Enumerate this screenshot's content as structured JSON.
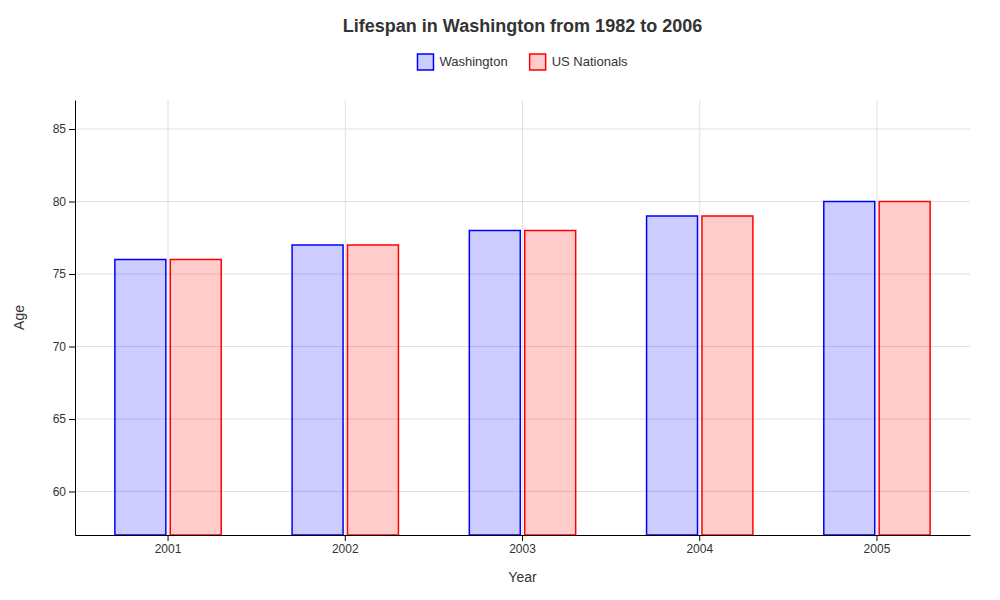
{
  "chart_data": {
    "type": "bar",
    "title": "Lifespan in Washington from 1982 to 2006",
    "xlabel": "Year",
    "ylabel": "Age",
    "categories": [
      "2001",
      "2002",
      "2003",
      "2004",
      "2005"
    ],
    "series": [
      {
        "name": "Washington",
        "color": "#0000ff",
        "values": [
          76.0,
          77.0,
          78.0,
          79.0,
          80.0
        ]
      },
      {
        "name": "US Nationals",
        "color": "#ff0000",
        "values": [
          76.0,
          77.0,
          78.0,
          79.0,
          80.0
        ]
      }
    ],
    "ylim": [
      57,
      87
    ],
    "yticks": [
      60,
      65,
      70,
      75,
      80,
      85
    ],
    "grid": true,
    "legend": "top"
  }
}
